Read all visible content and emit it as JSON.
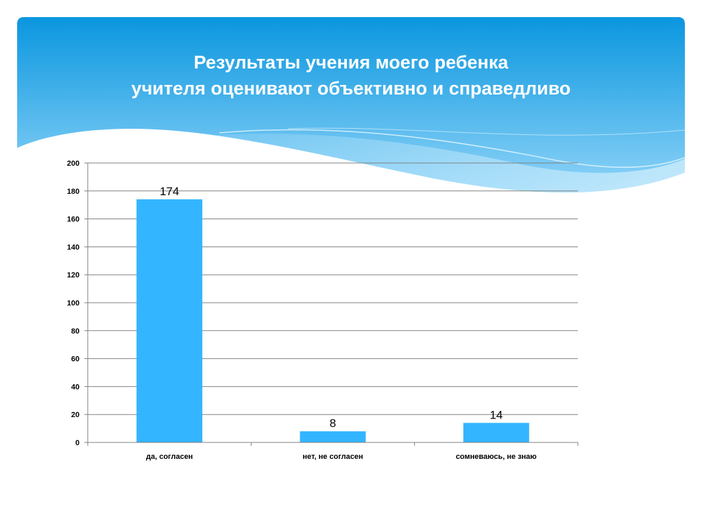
{
  "slide": {
    "title_line1": "Результаты учения моего ребенка",
    "title_line2": "учителя оценивают объективно и справедливо"
  },
  "colors": {
    "header_top": "#0a96df",
    "header_bottom": "#8fd4f8",
    "bar": "#33b5ff",
    "grid": "#808080"
  },
  "chart_data": {
    "type": "bar",
    "categories": [
      "да, согласен",
      "нет, не согласен",
      "сомневаюсь, не знаю"
    ],
    "values": [
      174,
      8,
      14
    ],
    "data_labels": [
      "174",
      "8",
      "14"
    ],
    "title": "Результаты учения моего ребенка учителя оценивают объективно и справедливо",
    "xlabel": "",
    "ylabel": "",
    "ylim": [
      0,
      200
    ],
    "yticks": [
      0,
      20,
      40,
      60,
      80,
      100,
      120,
      140,
      160,
      180,
      200
    ],
    "grid": true,
    "legend": "none"
  }
}
